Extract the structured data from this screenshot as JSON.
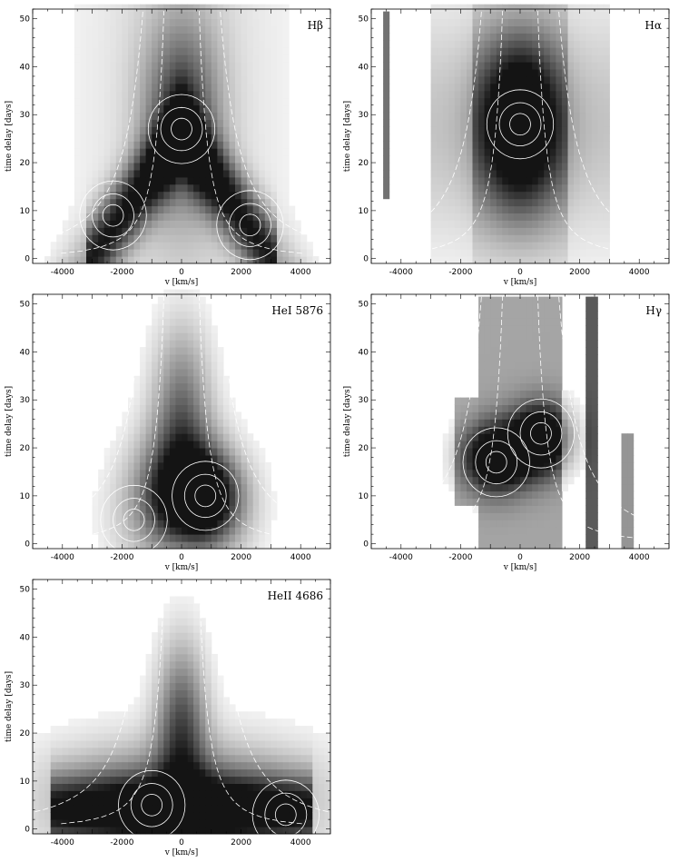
{
  "chart_data": [
    {
      "type": "heatmap",
      "label": "Hβ",
      "xlabel": "v [km/s]",
      "ylabel": "time delay [days]",
      "xlim": [
        -5000,
        5000
      ],
      "ylim": [
        -1,
        52
      ],
      "xticks": [
        -4000,
        -2000,
        0,
        2000,
        4000
      ],
      "yticks": [
        0,
        10,
        20,
        30,
        40,
        50
      ],
      "description_shape": "inverted-V",
      "peaks": [
        {
          "v": -2300,
          "t": 9
        },
        {
          "v": 2300,
          "t": 7
        },
        {
          "v": 0,
          "t": 27
        }
      ],
      "colormap": "gray-reversed"
    },
    {
      "type": "heatmap",
      "label": "Hα",
      "xlabel": "v [km/s]",
      "ylabel": "time delay [days]",
      "xlim": [
        -5000,
        5000
      ],
      "ylim": [
        -1,
        52
      ],
      "xticks": [
        -4000,
        -2000,
        0,
        2000,
        4000
      ],
      "yticks": [
        0,
        10,
        20,
        30,
        40,
        50
      ],
      "peaks": [
        {
          "v": 0,
          "t": 28
        }
      ],
      "colormap": "gray-reversed"
    },
    {
      "type": "heatmap",
      "label": "HeI 5876",
      "xlabel": "v [km/s]",
      "ylabel": "time delay [days]",
      "xlim": [
        -5000,
        5000
      ],
      "ylim": [
        -1,
        52
      ],
      "xticks": [
        -4000,
        -2000,
        0,
        2000,
        4000
      ],
      "yticks": [
        0,
        10,
        20,
        30,
        40,
        50
      ],
      "peaks": [
        {
          "v": 800,
          "t": 10
        },
        {
          "v": -1600,
          "t": 5
        }
      ],
      "colormap": "gray-reversed"
    },
    {
      "type": "heatmap",
      "label": "Hγ",
      "xlabel": "v [km/s]",
      "ylabel": "time delay [days]",
      "xlim": [
        -5000,
        5000
      ],
      "ylim": [
        -1,
        52
      ],
      "xticks": [
        -4000,
        -2000,
        0,
        2000,
        4000
      ],
      "yticks": [
        0,
        10,
        20,
        30,
        40,
        50
      ],
      "peaks": [
        {
          "v": 700,
          "t": 23
        },
        {
          "v": -800,
          "t": 17
        }
      ],
      "colormap": "gray-reversed"
    },
    {
      "type": "heatmap",
      "label": "HeII 4686",
      "xlabel": "v [km/s]",
      "ylabel": "time delay [days]",
      "xlim": [
        -5000,
        5000
      ],
      "ylim": [
        -1,
        52
      ],
      "xticks": [
        -4000,
        -2000,
        0,
        2000,
        4000
      ],
      "yticks": [
        0,
        10,
        20,
        30,
        40,
        50
      ],
      "peaks": [
        {
          "v": -1000,
          "t": 5
        },
        {
          "v": 3500,
          "t": 3
        }
      ],
      "colormap": "gray-reversed"
    }
  ]
}
